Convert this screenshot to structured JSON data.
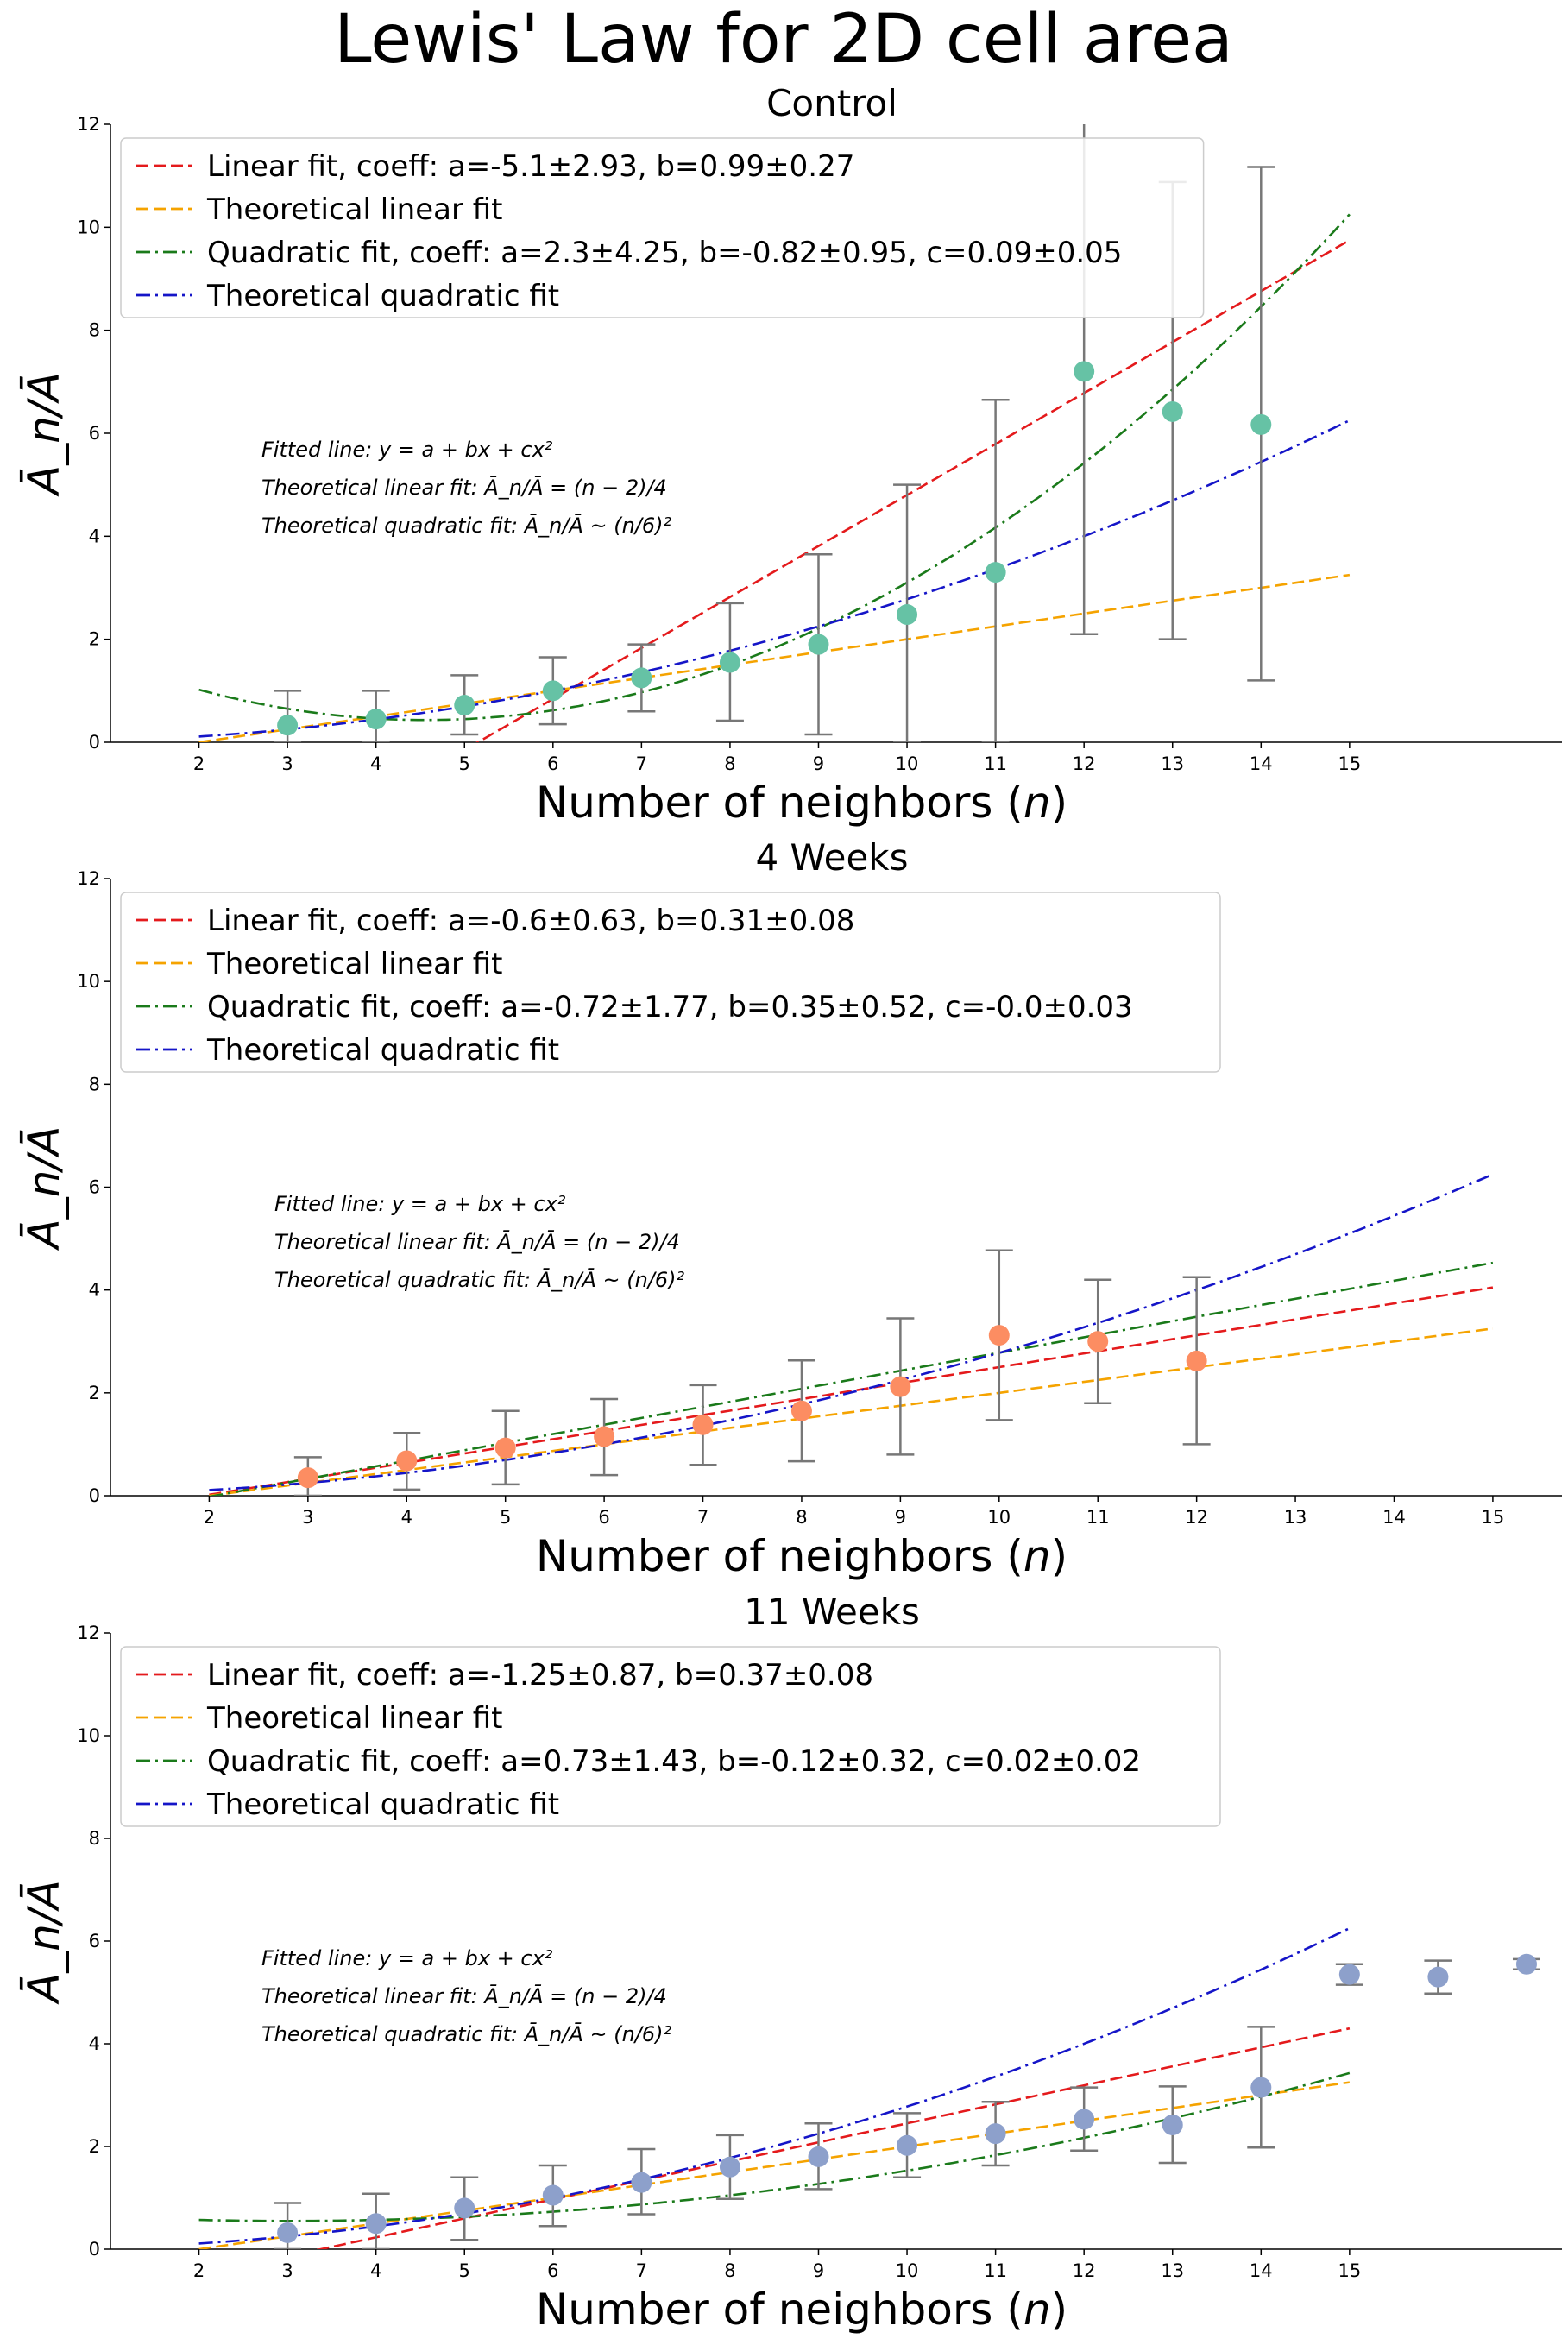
{
  "figure": {
    "title": "Lewis' Law for 2D cell area"
  },
  "chart_data": [
    {
      "type": "scatter",
      "title": "Control",
      "xlabel": "Number of neighbors (n)",
      "ylabel": "Ā_n/Ā",
      "xlim": [
        1,
        17.4
      ],
      "ylim": [
        0,
        12
      ],
      "xticks": [
        2,
        3,
        4,
        5,
        6,
        7,
        8,
        9,
        10,
        11,
        12,
        13,
        14,
        15
      ],
      "yticks": [
        0,
        2,
        4,
        6,
        8,
        10,
        12
      ],
      "marker_color": "#66c2a5",
      "points": [
        {
          "x": 3,
          "y": 0.33,
          "lo": 0.0,
          "hi": 1.0
        },
        {
          "x": 4,
          "y": 0.45,
          "lo": 0.0,
          "hi": 1.0
        },
        {
          "x": 5,
          "y": 0.72,
          "lo": 0.15,
          "hi": 1.3
        },
        {
          "x": 6,
          "y": 1.0,
          "lo": 0.35,
          "hi": 1.65
        },
        {
          "x": 7,
          "y": 1.25,
          "lo": 0.6,
          "hi": 1.9
        },
        {
          "x": 8,
          "y": 1.55,
          "lo": 0.42,
          "hi": 2.7
        },
        {
          "x": 9,
          "y": 1.9,
          "lo": 0.15,
          "hi": 3.65
        },
        {
          "x": 10,
          "y": 2.48,
          "lo": 0.0,
          "hi": 5.0
        },
        {
          "x": 11,
          "y": 3.3,
          "lo": 0.0,
          "hi": 6.65
        },
        {
          "x": 12,
          "y": 7.2,
          "lo": 2.1,
          "hi": 12.4
        },
        {
          "x": 13,
          "y": 6.42,
          "lo": 2.0,
          "hi": 10.88
        },
        {
          "x": 14,
          "y": 6.17,
          "lo": 1.2,
          "hi": 11.17
        }
      ],
      "linear_fit": {
        "a": -5.1,
        "b": 0.99
      },
      "quadratic_fit": {
        "a": 2.3,
        "b": -0.82,
        "c": 0.09
      },
      "legend": [
        {
          "label": "Linear fit, coeff: a=-5.1±2.93, b=0.99±0.27",
          "color": "#e41a1c",
          "dash": "dashed"
        },
        {
          "label": "Theoretical linear fit",
          "color": "#f5a300",
          "dash": "dashed"
        },
        {
          "label": "Quadratic fit, coeff: a=2.3±4.25, b=-0.82±0.95, c=0.09±0.05",
          "color": "#1a7a1a",
          "dash": "dashdot"
        },
        {
          "label": "Theoretical quadratic fit",
          "color": "#1515c8",
          "dash": "dashdot"
        }
      ],
      "annotations": [
        "Fitted line: y = a + bx + cx²",
        "Theoretical linear fit: Ā_n/Ā = (n − 2)/4",
        "Theoretical quadratic fit: Ā_n/Ā ~ (n/6)²"
      ]
    },
    {
      "type": "scatter",
      "title": "4 Weeks",
      "xlabel": "Number of neighbors (n)",
      "ylabel": "Ā_n/Ā",
      "xlim": [
        1,
        15.7
      ],
      "ylim": [
        0,
        12
      ],
      "xticks": [
        2,
        3,
        4,
        5,
        6,
        7,
        8,
        9,
        10,
        11,
        12,
        13,
        14,
        15
      ],
      "yticks": [
        0,
        2,
        4,
        6,
        8,
        10,
        12
      ],
      "marker_color": "#fc8d62",
      "points": [
        {
          "x": 3,
          "y": 0.35,
          "lo": 0.0,
          "hi": 0.75
        },
        {
          "x": 4,
          "y": 0.68,
          "lo": 0.12,
          "hi": 1.22
        },
        {
          "x": 5,
          "y": 0.93,
          "lo": 0.22,
          "hi": 1.65
        },
        {
          "x": 6,
          "y": 1.15,
          "lo": 0.4,
          "hi": 1.88
        },
        {
          "x": 7,
          "y": 1.38,
          "lo": 0.6,
          "hi": 2.15
        },
        {
          "x": 8,
          "y": 1.65,
          "lo": 0.67,
          "hi": 2.63
        },
        {
          "x": 9,
          "y": 2.12,
          "lo": 0.8,
          "hi": 3.45
        },
        {
          "x": 10,
          "y": 3.12,
          "lo": 1.47,
          "hi": 4.77
        },
        {
          "x": 11,
          "y": 3.0,
          "lo": 1.8,
          "hi": 4.2
        },
        {
          "x": 12,
          "y": 2.62,
          "lo": 1.0,
          "hi": 4.25
        }
      ],
      "linear_fit": {
        "a": -0.6,
        "b": 0.31
      },
      "quadratic_fit": {
        "a": -0.72,
        "b": 0.35,
        "c": -0.0
      },
      "legend": [
        {
          "label": "Linear fit, coeff: a=-0.6±0.63, b=0.31±0.08",
          "color": "#e41a1c",
          "dash": "dashed"
        },
        {
          "label": "Theoretical linear fit",
          "color": "#f5a300",
          "dash": "dashed"
        },
        {
          "label": "Quadratic fit, coeff: a=-0.72±1.77, b=0.35±0.52, c=-0.0±0.03",
          "color": "#1a7a1a",
          "dash": "dashdot"
        },
        {
          "label": "Theoretical quadratic fit",
          "color": "#1515c8",
          "dash": "dashdot"
        }
      ],
      "annotations": [
        "Fitted line: y = a + bx + cx²",
        "Theoretical linear fit: Ā_n/Ā = (n − 2)/4",
        "Theoretical quadratic fit: Ā_n/Ā ~ (n/6)²"
      ]
    },
    {
      "type": "scatter",
      "title": "11 Weeks",
      "xlabel": "Number of neighbors (n)",
      "ylabel": "Ā_n/Ā",
      "xlim": [
        1,
        17.4
      ],
      "ylim": [
        0,
        12
      ],
      "xticks": [
        2,
        3,
        4,
        5,
        6,
        7,
        8,
        9,
        10,
        11,
        12,
        13,
        14,
        15
      ],
      "yticks": [
        0,
        2,
        4,
        6,
        8,
        10,
        12
      ],
      "marker_color": "#8da0cb",
      "points": [
        {
          "x": 3,
          "y": 0.32,
          "lo": 0.0,
          "hi": 0.9
        },
        {
          "x": 4,
          "y": 0.5,
          "lo": 0.0,
          "hi": 1.08
        },
        {
          "x": 5,
          "y": 0.8,
          "lo": 0.18,
          "hi": 1.4
        },
        {
          "x": 6,
          "y": 1.05,
          "lo": 0.45,
          "hi": 1.63
        },
        {
          "x": 7,
          "y": 1.3,
          "lo": 0.68,
          "hi": 1.95
        },
        {
          "x": 8,
          "y": 1.6,
          "lo": 0.98,
          "hi": 2.22
        },
        {
          "x": 9,
          "y": 1.8,
          "lo": 1.17,
          "hi": 2.45
        },
        {
          "x": 10,
          "y": 2.02,
          "lo": 1.4,
          "hi": 2.65
        },
        {
          "x": 11,
          "y": 2.25,
          "lo": 1.63,
          "hi": 2.87
        },
        {
          "x": 12,
          "y": 2.53,
          "lo": 1.92,
          "hi": 3.15
        },
        {
          "x": 13,
          "y": 2.42,
          "lo": 1.68,
          "hi": 3.17
        },
        {
          "x": 14,
          "y": 3.15,
          "lo": 1.98,
          "hi": 4.33
        },
        {
          "x": 15,
          "y": 5.35,
          "lo": 5.15,
          "hi": 5.55
        },
        {
          "x": 16,
          "y": 5.3,
          "lo": 4.98,
          "hi": 5.62
        },
        {
          "x": 17,
          "y": 5.55,
          "lo": 5.45,
          "hi": 5.65
        }
      ],
      "linear_fit": {
        "a": -1.25,
        "b": 0.37
      },
      "quadratic_fit": {
        "a": 0.73,
        "b": -0.12,
        "c": 0.02
      },
      "legend": [
        {
          "label": "Linear fit, coeff: a=-1.25±0.87, b=0.37±0.08",
          "color": "#e41a1c",
          "dash": "dashed"
        },
        {
          "label": "Theoretical linear fit",
          "color": "#f5a300",
          "dash": "dashed"
        },
        {
          "label": "Quadratic fit, coeff: a=0.73±1.43, b=-0.12±0.32, c=0.02±0.02",
          "color": "#1a7a1a",
          "dash": "dashdot"
        },
        {
          "label": "Theoretical quadratic fit",
          "color": "#1515c8",
          "dash": "dashdot"
        }
      ],
      "annotations": [
        "Fitted line: y = a + bx + cx²",
        "Theoretical linear fit: Ā_n/Ā = (n − 2)/4",
        "Theoretical quadratic fit: Ā_n/Ā ~ (n/6)²"
      ]
    }
  ]
}
